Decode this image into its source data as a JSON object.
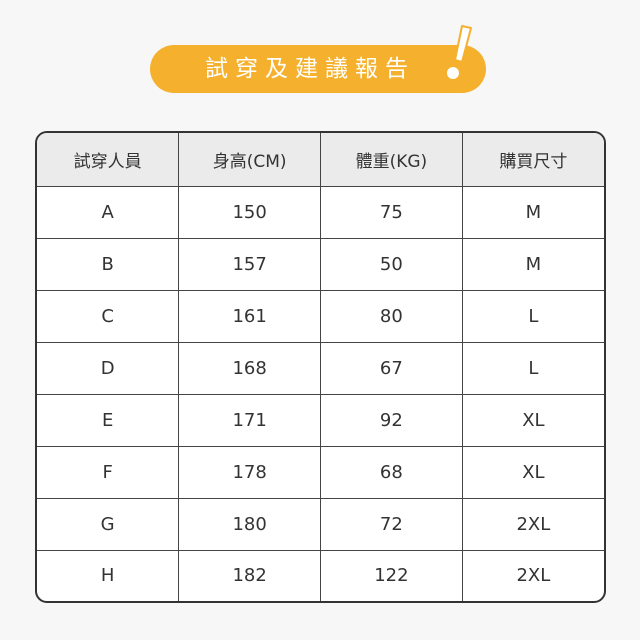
{
  "banner": {
    "title": "試穿及建議報告",
    "icon": "exclamation-icon",
    "color": "#f5b12e"
  },
  "table": {
    "headers": [
      "試穿人員",
      "身高(CM)",
      "體重(KG)",
      "購買尺寸"
    ],
    "rows": [
      [
        "A",
        "150",
        "75",
        "M"
      ],
      [
        "B",
        "157",
        "50",
        "M"
      ],
      [
        "C",
        "161",
        "80",
        "L"
      ],
      [
        "D",
        "168",
        "67",
        "L"
      ],
      [
        "E",
        "171",
        "92",
        "XL"
      ],
      [
        "F",
        "178",
        "68",
        "XL"
      ],
      [
        "G",
        "180",
        "72",
        "2XL"
      ],
      [
        "H",
        "182",
        "122",
        "2XL"
      ]
    ]
  }
}
